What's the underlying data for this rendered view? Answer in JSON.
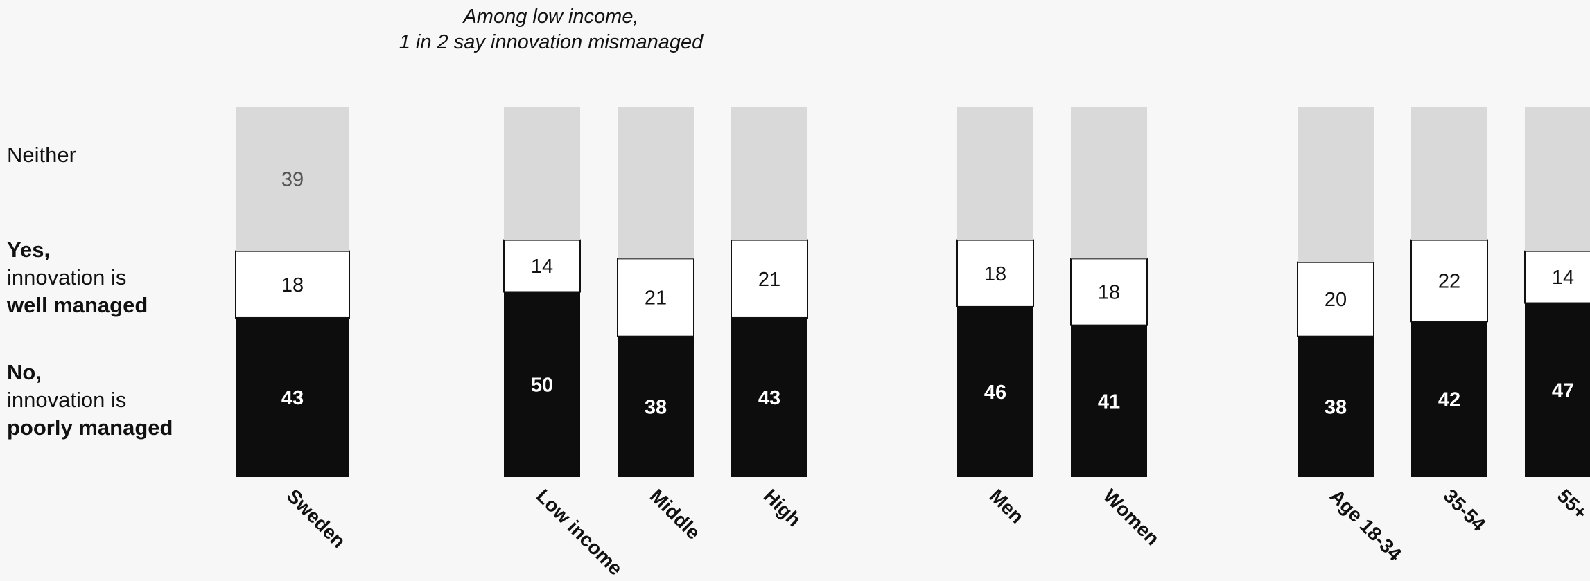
{
  "annotation": {
    "line1": "Among low income,",
    "line2": "1 in 2 say innovation mismanaged"
  },
  "row_labels": {
    "neither": "Neither",
    "yes_l1": "Yes,",
    "yes_l2": "innovation is",
    "yes_l3": "well managed",
    "no_l1": "No,",
    "no_l2": "innovation is",
    "no_l3": "poorly managed"
  },
  "colors": {
    "no": "#0d0d0d",
    "yes": "#ffffff",
    "neither": "#d9d9d9",
    "background": "#f7f7f7"
  },
  "chart_data": {
    "type": "bar",
    "stacked": true,
    "orientation": "vertical",
    "categories": [
      "Sweden",
      "Low income",
      "Middle",
      "High",
      "Men",
      "Women",
      "Age 18-34",
      "35-54",
      "55+"
    ],
    "groups": [
      [
        "Sweden"
      ],
      [
        "Low income",
        "Middle",
        "High"
      ],
      [
        "Men",
        "Women"
      ],
      [
        "Age 18-34",
        "35-54",
        "55+"
      ]
    ],
    "series": [
      {
        "name": "No, innovation is poorly managed",
        "values": [
          43,
          50,
          38,
          43,
          46,
          41,
          38,
          42,
          47
        ]
      },
      {
        "name": "Yes, innovation is well managed",
        "values": [
          18,
          14,
          21,
          21,
          18,
          18,
          20,
          22,
          14
        ]
      },
      {
        "name": "Neither",
        "values": [
          39,
          36,
          41,
          36,
          36,
          41,
          42,
          36,
          39
        ]
      }
    ],
    "value_labels_shown": {
      "Neither": [
        "39",
        "",
        "",
        "",
        "",
        "",
        "",
        "",
        ""
      ]
    },
    "ylim": [
      0,
      100
    ],
    "legend": "left, row labels",
    "grid": false
  }
}
